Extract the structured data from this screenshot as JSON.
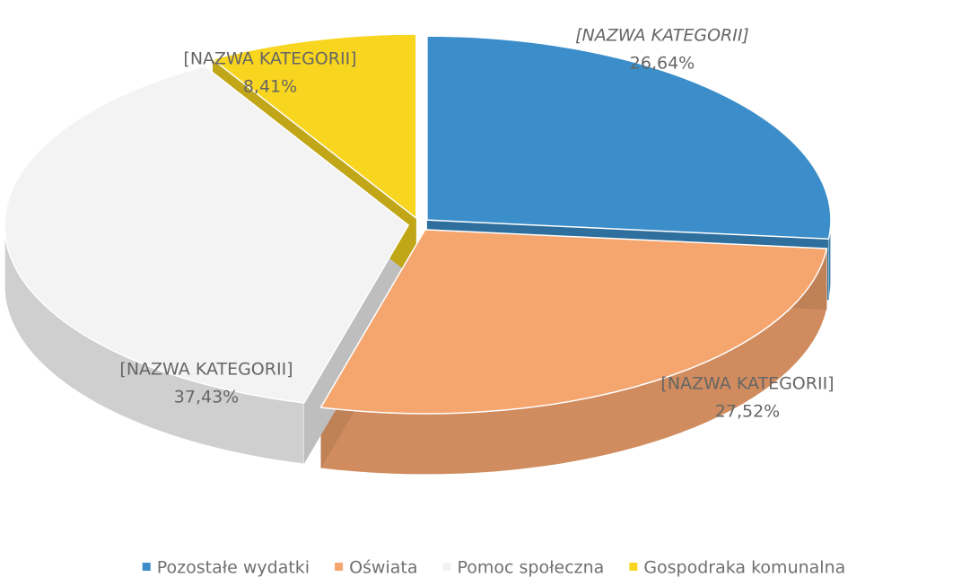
{
  "chart_data": {
    "type": "pie3d",
    "categories": [
      "Pozostałe wydatki",
      "Oświata",
      "Pomoc społeczna",
      "Gospodraka komunalna"
    ],
    "values": [
      26.64,
      27.52,
      37.43,
      8.41
    ],
    "value_labels": [
      "26,64%",
      "27,52%",
      "37,43%",
      "8,41%"
    ],
    "label_names": [
      "[NAZWA KATEGORII]",
      "[NAZWA KATEGORII]",
      "[NAZWA KATEGORII]",
      "[NAZWA KATEGORII]"
    ],
    "colors": [
      "#3b8ec9",
      "#f5a56e",
      "#f3f3f3",
      "#f8d51e"
    ],
    "legend": "bottom"
  }
}
